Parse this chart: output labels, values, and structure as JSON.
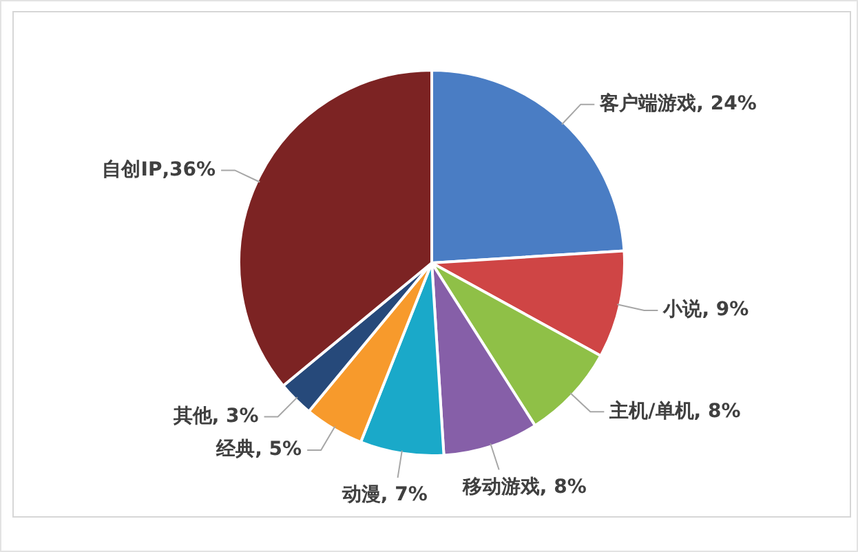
{
  "chart_data": {
    "type": "pie",
    "categories": [
      "客户端游戏",
      "小说",
      "主机/单机",
      "移动游戏",
      "动漫",
      "经典",
      "其他",
      "自创IP"
    ],
    "values": [
      24,
      9,
      8,
      8,
      7,
      5,
      3,
      36
    ],
    "colors": [
      "#4a7dc4",
      "#cf4545",
      "#8fc047",
      "#865fa8",
      "#1aa9c9",
      "#f79a2c",
      "#26497a",
      "#7c2323"
    ],
    "value_labels": [
      ", 24%",
      ", 9%",
      ", 8%",
      ", 8%",
      ", 7%",
      ", 5%",
      ", 3%",
      ",36%"
    ]
  }
}
